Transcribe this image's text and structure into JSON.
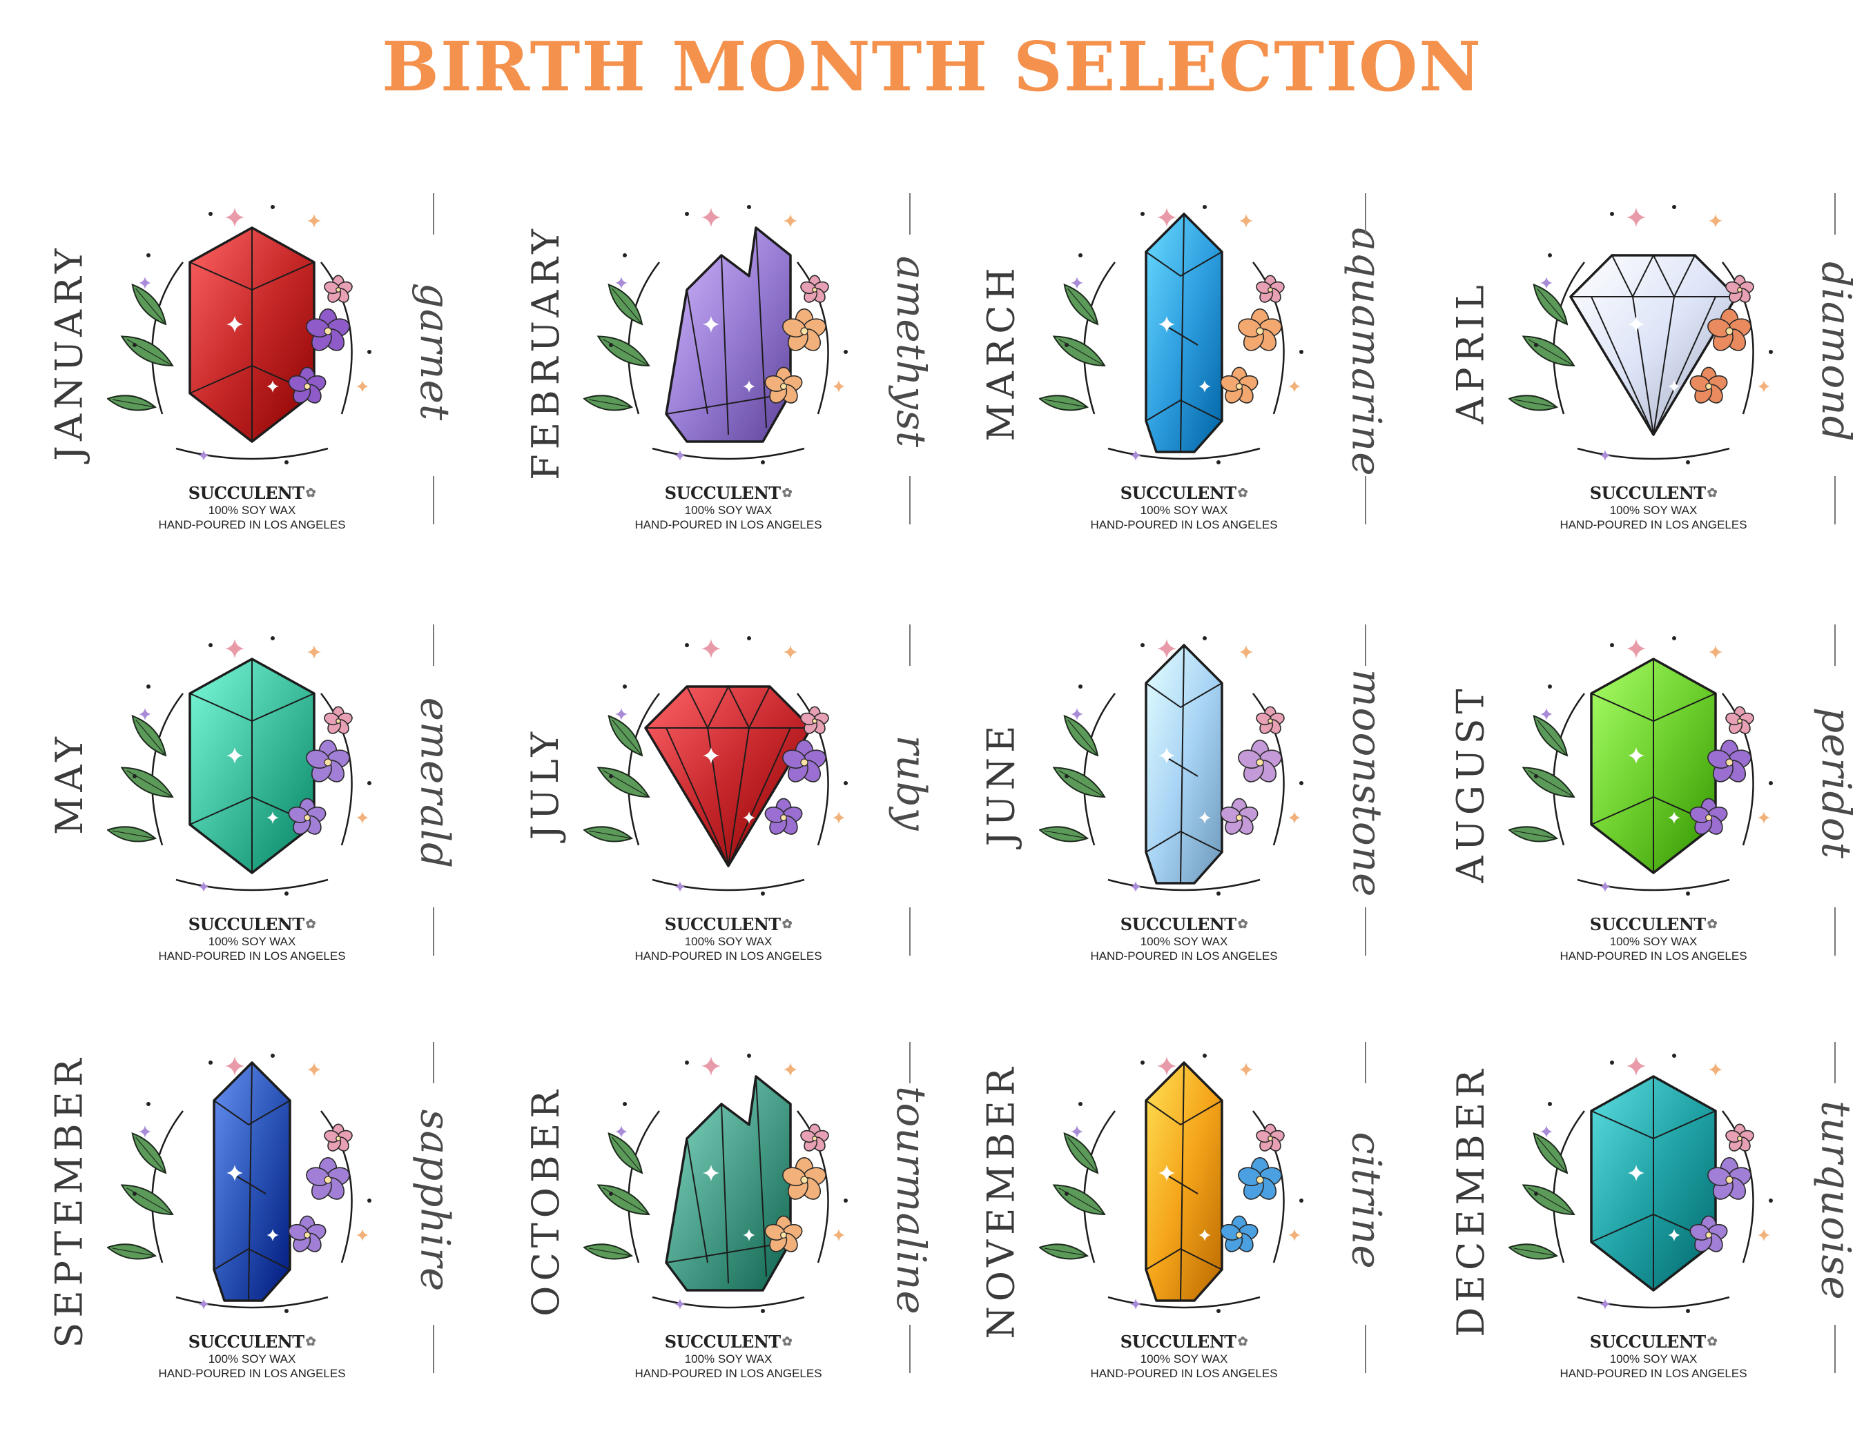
{
  "title": "BIRTH MONTH SELECTION",
  "title_color": "#f4914d",
  "brand": {
    "name": "SUCCULENT",
    "mark_icon": "plant-sprout-icon",
    "line1": "100% SOY WAX",
    "line2": "HAND-POURED IN LOS ANGELES"
  },
  "cards": [
    {
      "month": "JANUARY",
      "gem": "garnet",
      "gem_color": "#c62828",
      "gem_shape": "hexagon",
      "flower_color": "#8e5bc9"
    },
    {
      "month": "FEBRUARY",
      "gem": "amethyst",
      "gem_color": "#9a7fd6",
      "gem_shape": "cluster",
      "flower_color": "#f2b17a"
    },
    {
      "month": "MARCH",
      "gem": "aquamarine",
      "gem_color": "#2f9fe0",
      "gem_shape": "tall",
      "flower_color": "#f2a86f"
    },
    {
      "month": "APRIL",
      "gem": "diamond",
      "gem_color": "#dde4f7",
      "gem_shape": "diamond",
      "flower_color": "#e98b5e"
    },
    {
      "month": "MAY",
      "gem": "emerald",
      "gem_color": "#3fbf9d",
      "gem_shape": "hexagon",
      "flower_color": "#a17fd6"
    },
    {
      "month": "JULY",
      "gem": "ruby",
      "gem_color": "#c7282d",
      "gem_shape": "diamond",
      "flower_color": "#9a6fd1"
    },
    {
      "month": "JUNE",
      "gem": "moonstone",
      "gem_color": "#a9d4f5",
      "gem_shape": "tall",
      "flower_color": "#c59ad8"
    },
    {
      "month": "AUGUST",
      "gem": "peridot",
      "gem_color": "#6dcf2d",
      "gem_shape": "hexagon",
      "flower_color": "#9a6fd1"
    },
    {
      "month": "SEPTEMBER",
      "gem": "sapphire",
      "gem_color": "#2c55b8",
      "gem_shape": "tall",
      "flower_color": "#a17fd6"
    },
    {
      "month": "OCTOBER",
      "gem": "tourmaline",
      "gem_color": "#4aa08a",
      "gem_shape": "cluster",
      "flower_color": "#f2b17a"
    },
    {
      "month": "NOVEMBER",
      "gem": "citrine",
      "gem_color": "#f5a51a",
      "gem_shape": "tall",
      "flower_color": "#4aa0e0"
    },
    {
      "month": "DECEMBER",
      "gem": "turquoise",
      "gem_color": "#21a3a6",
      "gem_shape": "hexagon",
      "flower_color": "#a17fd6"
    }
  ]
}
